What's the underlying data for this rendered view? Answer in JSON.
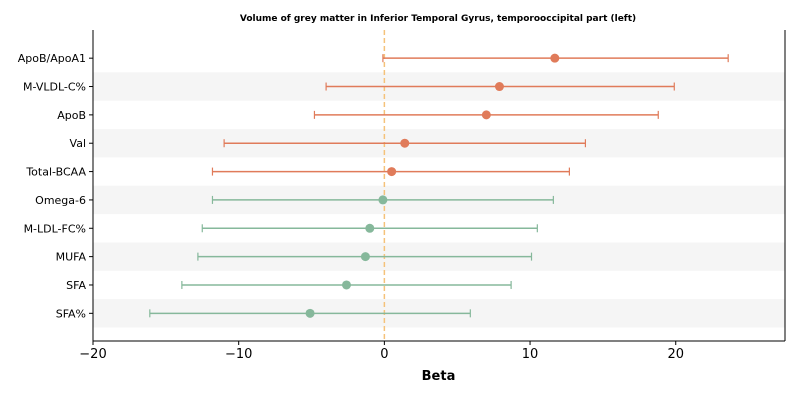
{
  "chart_data": {
    "type": "forest",
    "title": "Volume of grey matter in Inferior Temporal Gyrus, temporooccipital part (left)",
    "xlabel": "Beta",
    "xlim": [
      -20,
      27.5
    ],
    "xticks": [
      -20,
      -10,
      0,
      10,
      20
    ],
    "xtick_labels": [
      "−20",
      "−10",
      "0",
      "10",
      "20"
    ],
    "reference_line": 0,
    "grid": false,
    "colors": {
      "positive": "#e07b5a",
      "negative": "#86b89b",
      "reference": "#f5c27a",
      "band": "#f5f5f5"
    },
    "rows": [
      {
        "label": "ApoB/ApoA1",
        "beta": 11.7,
        "lo": -0.1,
        "hi": 23.6,
        "group": "positive"
      },
      {
        "label": "M-VLDL-C%",
        "beta": 7.9,
        "lo": -4.0,
        "hi": 19.9,
        "group": "positive"
      },
      {
        "label": "ApoB",
        "beta": 7.0,
        "lo": -4.8,
        "hi": 18.8,
        "group": "positive"
      },
      {
        "label": "Val",
        "beta": 1.4,
        "lo": -11.0,
        "hi": 13.8,
        "group": "positive"
      },
      {
        "label": "Total-BCAA",
        "beta": 0.5,
        "lo": -11.8,
        "hi": 12.7,
        "group": "positive"
      },
      {
        "label": "Omega-6",
        "beta": -0.1,
        "lo": -11.8,
        "hi": 11.6,
        "group": "negative"
      },
      {
        "label": "M-LDL-FC%",
        "beta": -1.0,
        "lo": -12.5,
        "hi": 10.5,
        "group": "negative"
      },
      {
        "label": "MUFA",
        "beta": -1.3,
        "lo": -12.8,
        "hi": 10.1,
        "group": "negative"
      },
      {
        "label": "SFA",
        "beta": -2.6,
        "lo": -13.9,
        "hi": 8.7,
        "group": "negative"
      },
      {
        "label": "SFA%",
        "beta": -5.1,
        "lo": -16.1,
        "hi": 5.9,
        "group": "negative"
      }
    ]
  }
}
